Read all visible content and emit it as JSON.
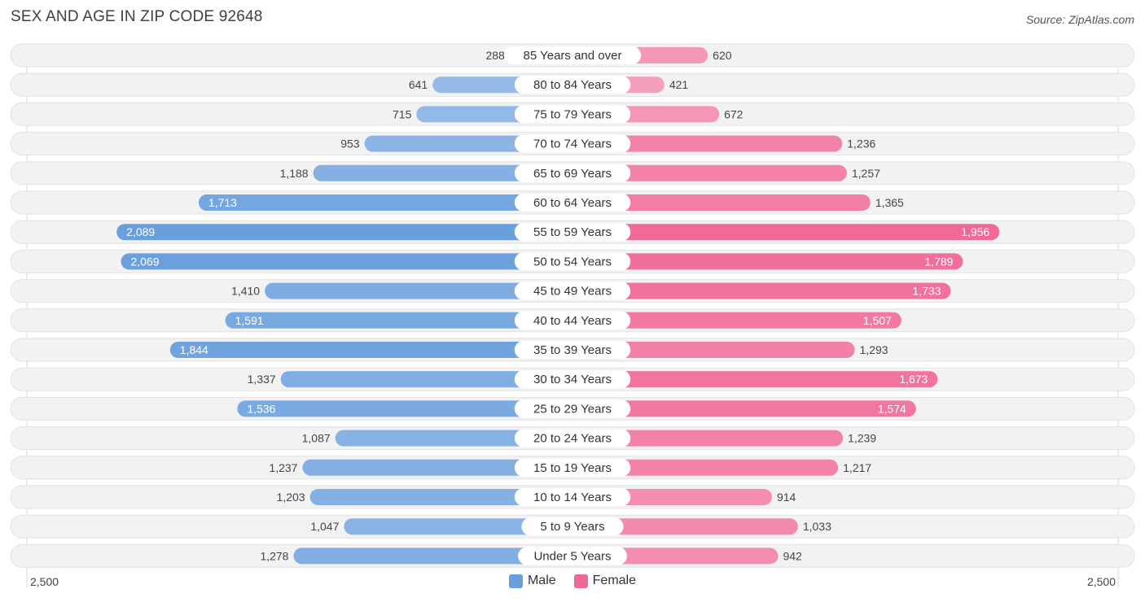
{
  "title": "SEX AND AGE IN ZIP CODE 92648",
  "source": "Source: ZipAtlas.com",
  "legend": {
    "male": "Male",
    "female": "Female"
  },
  "axis": {
    "left_label": "2,500",
    "right_label": "2,500"
  },
  "colors": {
    "male_light": "#a6c7ec",
    "male_dark": "#6a9fdd",
    "female_light": "#f7adc7",
    "female_dark": "#f06896",
    "row_bg": "#f2f2f2"
  },
  "chart_data": {
    "type": "bar",
    "orientation": "horizontal-diverging",
    "xlim": [
      -2500,
      2500
    ],
    "categories": [
      "85 Years and over",
      "80 to 84 Years",
      "75 to 79 Years",
      "70 to 74 Years",
      "65 to 69 Years",
      "60 to 64 Years",
      "55 to 59 Years",
      "50 to 54 Years",
      "45 to 49 Years",
      "40 to 44 Years",
      "35 to 39 Years",
      "30 to 34 Years",
      "25 to 29 Years",
      "20 to 24 Years",
      "15 to 19 Years",
      "10 to 14 Years",
      "5 to 9 Years",
      "Under 5 Years"
    ],
    "series": [
      {
        "name": "Male",
        "values": [
          288,
          641,
          715,
          953,
          1188,
          1713,
          2089,
          2069,
          1410,
          1591,
          1844,
          1337,
          1536,
          1087,
          1237,
          1203,
          1047,
          1278
        ],
        "labels": [
          "288",
          "641",
          "715",
          "953",
          "1,188",
          "1,713",
          "2,089",
          "2,069",
          "1,410",
          "1,591",
          "1,844",
          "1,337",
          "1,536",
          "1,087",
          "1,237",
          "1,203",
          "1,047",
          "1,278"
        ]
      },
      {
        "name": "Female",
        "values": [
          620,
          421,
          672,
          1236,
          1257,
          1365,
          1956,
          1789,
          1733,
          1507,
          1293,
          1673,
          1574,
          1239,
          1217,
          914,
          1033,
          942
        ],
        "labels": [
          "620",
          "421",
          "672",
          "1,236",
          "1,257",
          "1,365",
          "1,956",
          "1,789",
          "1,733",
          "1,507",
          "1,293",
          "1,673",
          "1,574",
          "1,239",
          "1,217",
          "914",
          "1,033",
          "942"
        ]
      }
    ],
    "legend_position": "bottom-center"
  }
}
